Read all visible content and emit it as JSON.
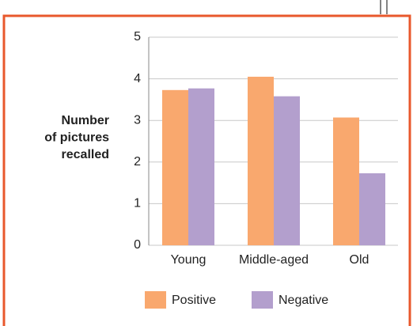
{
  "chart_data": {
    "type": "bar",
    "y_label": [
      "Number",
      "of pictures",
      "recalled"
    ],
    "categories": [
      "Young",
      "Middle-aged",
      "Old"
    ],
    "series": [
      {
        "name": "Positive",
        "color": "#f9a86e",
        "values": [
          3.73,
          4.05,
          3.07
        ]
      },
      {
        "name": "Negative",
        "color": "#b39fcd",
        "values": [
          3.77,
          3.58,
          1.73
        ]
      }
    ],
    "ylim": [
      0,
      5
    ],
    "yticks": [
      0,
      1,
      2,
      3,
      4,
      5
    ],
    "grid": true,
    "legend": "bottom"
  }
}
